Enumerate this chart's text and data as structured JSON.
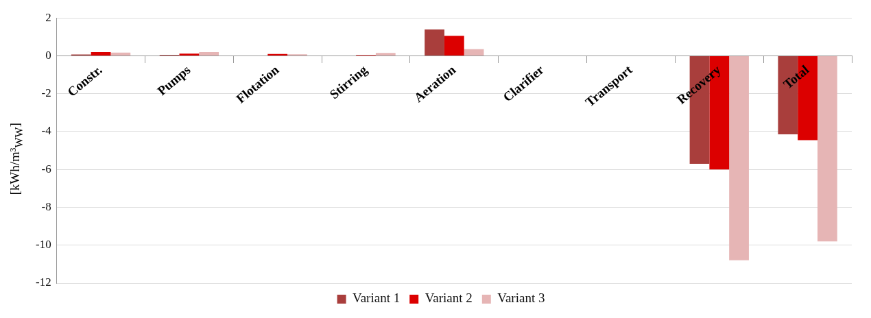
{
  "chart_data": {
    "type": "bar",
    "ylabel": "[kWh/m³$_{WW}$]",
    "categories": [
      "Constr.",
      "Pumps",
      "Flotation",
      "Stirring",
      "Aeration",
      "Clarifier",
      "Transport",
      "Recovery",
      "Total"
    ],
    "series": [
      {
        "name": "Variant 1",
        "color": "#a93e3c",
        "values": [
          0.07,
          0.05,
          0,
          0,
          1.39,
          0,
          0,
          -5.7,
          -4.15
        ]
      },
      {
        "name": "Variant 2",
        "color": "#dc0000",
        "values": [
          0.2,
          0.12,
          0.1,
          0.04,
          1.06,
          0,
          0,
          -6.0,
          -4.45
        ]
      },
      {
        "name": "Variant 3",
        "color": "#e6b5b5",
        "values": [
          0.17,
          0.2,
          0.08,
          0.15,
          0.35,
          0,
          0,
          -10.8,
          -9.8
        ]
      }
    ],
    "ylim": [
      -12,
      2
    ],
    "yticks": [
      -12,
      -10,
      -8,
      -6,
      -4,
      -2,
      0,
      2
    ],
    "grid": "y",
    "legend": "bottom"
  }
}
